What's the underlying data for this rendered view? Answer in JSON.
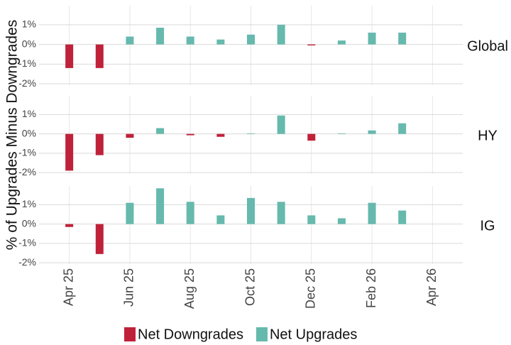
{
  "chart_data": {
    "type": "bar",
    "ylabel": "% of Upgrades Minus Downgrades",
    "x": [
      "2025-04",
      "2025-05",
      "2025-06",
      "2025-07",
      "2025-08",
      "2025-09",
      "2025-10",
      "2025-11",
      "2025-12",
      "2026-01",
      "2026-02",
      "2026-03"
    ],
    "xlim": [
      "2025-03",
      "2026-05"
    ],
    "xticks": [
      {
        "value": "2025-04",
        "label": "Apr 25"
      },
      {
        "value": "2025-06",
        "label": "Jun 25"
      },
      {
        "value": "2025-08",
        "label": "Aug 25"
      },
      {
        "value": "2025-10",
        "label": "Oct 25"
      },
      {
        "value": "2025-12",
        "label": "Dec 25"
      },
      {
        "value": "2026-02",
        "label": "Feb 26"
      },
      {
        "value": "2026-04",
        "label": "Apr 26"
      }
    ],
    "ylim": [
      -2.07,
      1.97
    ],
    "yticks": [
      {
        "value": -2,
        "label": "-2%"
      },
      {
        "value": -1,
        "label": "-1%"
      },
      {
        "value": 0,
        "label": "0%"
      },
      {
        "value": 1,
        "label": "1%"
      }
    ],
    "grid": true,
    "legend": [
      {
        "name": "Net Downgrades",
        "color": "#c0213a"
      },
      {
        "name": "Net Upgrades",
        "color": "#66b9ad"
      }
    ],
    "facets": [
      {
        "label": "Global",
        "values": [
          -1.2,
          -1.2,
          0.4,
          0.85,
          0.4,
          0.25,
          0.5,
          1.0,
          -0.05,
          0.2,
          0.6,
          0.6
        ]
      },
      {
        "label": "HY",
        "values": [
          -1.9,
          -1.1,
          -0.2,
          0.3,
          -0.07,
          -0.15,
          0.03,
          0.95,
          -0.35,
          0.03,
          0.18,
          0.55
        ]
      },
      {
        "label": "IG",
        "values": [
          -0.15,
          -1.55,
          1.1,
          1.85,
          1.15,
          0.45,
          1.35,
          1.15,
          0.45,
          0.3,
          1.1,
          0.7
        ]
      }
    ]
  }
}
